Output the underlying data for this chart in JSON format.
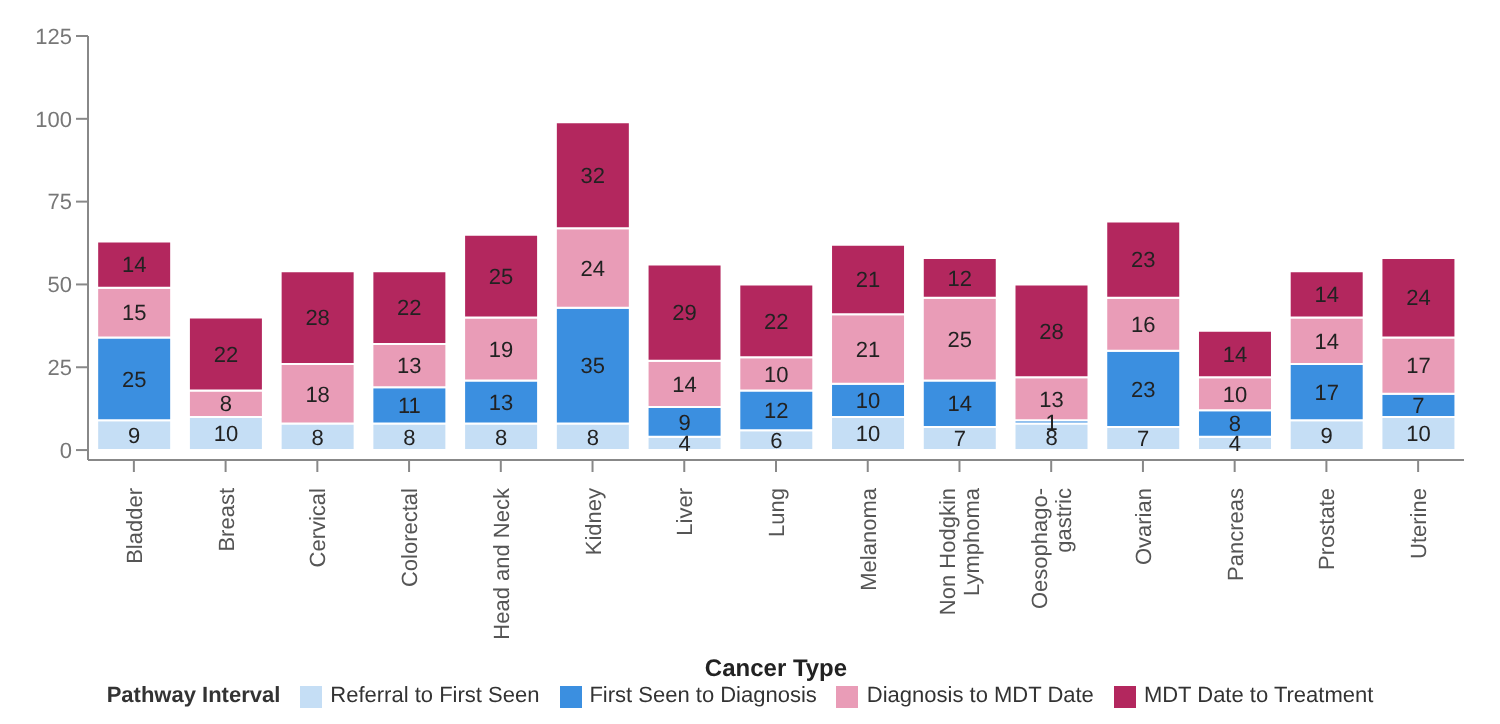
{
  "chart_data": {
    "type": "bar",
    "stacked": true,
    "xlabel": "Cancer Type",
    "legend_title": "Pathway Interval",
    "categories": [
      "Bladder",
      "Breast",
      "Cervical",
      "Colorectal",
      "Head and Neck",
      "Kidney",
      "Liver",
      "Lung",
      "Melanoma",
      "Non Hodgkin\nLymphoma",
      "Oesophago-\ngastric",
      "Ovarian",
      "Pancreas",
      "Prostate",
      "Uterine"
    ],
    "series": [
      {
        "name": "Referral to First Seen",
        "color": "#c5def5",
        "values": [
          9,
          10,
          8,
          8,
          8,
          8,
          4,
          6,
          10,
          7,
          8,
          7,
          4,
          9,
          10
        ]
      },
      {
        "name": "First Seen to Diagnosis",
        "color": "#3b8fe0",
        "values": [
          25,
          null,
          null,
          11,
          13,
          35,
          9,
          12,
          10,
          14,
          1,
          23,
          8,
          17,
          7
        ]
      },
      {
        "name": "Diagnosis to MDT Date",
        "color": "#e99cb7",
        "values": [
          15,
          8,
          18,
          13,
          19,
          24,
          14,
          10,
          21,
          25,
          13,
          16,
          10,
          14,
          17
        ]
      },
      {
        "name": "MDT Date to Treatment",
        "color": "#b3275e",
        "values": [
          14,
          22,
          28,
          22,
          25,
          32,
          29,
          22,
          21,
          12,
          28,
          23,
          14,
          14,
          24
        ]
      }
    ],
    "ylim": [
      -3,
      125
    ],
    "yticks": [
      0,
      25,
      50,
      75,
      100,
      125
    ],
    "grid": false,
    "legend": "bottom",
    "data_labels": true
  }
}
